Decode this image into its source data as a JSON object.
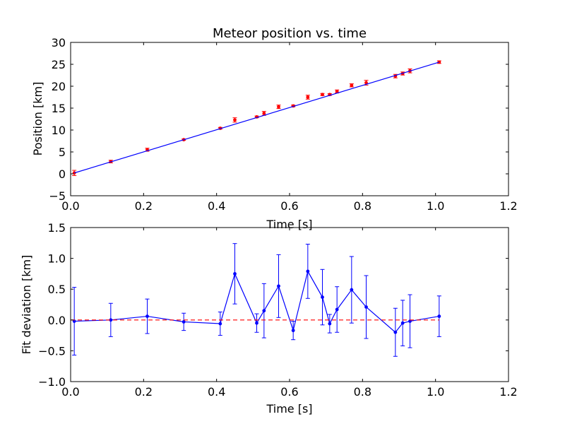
{
  "chart_data": [
    {
      "type": "scatter",
      "title": "Meteor position vs. time",
      "xlabel": "Time [s]",
      "ylabel": "Position [km]",
      "xlim": [
        0.0,
        1.2
      ],
      "ylim": [
        -5,
        30
      ],
      "xticks": [
        0.0,
        0.2,
        0.4,
        0.6,
        0.8,
        1.0,
        1.2
      ],
      "xtick_labels": [
        "0.0",
        "0.2",
        "0.4",
        "0.6",
        "0.8",
        "1.0",
        "1.2"
      ],
      "yticks": [
        -5,
        0,
        5,
        10,
        15,
        20,
        25,
        30
      ],
      "ytick_labels": [
        "−5",
        "0",
        "5",
        "10",
        "15",
        "20",
        "25",
        "30"
      ],
      "grid": false,
      "series": [
        {
          "kind": "errorbar-points",
          "color": "#ff0000",
          "x": [
            0.01,
            0.11,
            0.21,
            0.31,
            0.41,
            0.45,
            0.51,
            0.53,
            0.57,
            0.61,
            0.65,
            0.69,
            0.71,
            0.73,
            0.77,
            0.81,
            0.89,
            0.91,
            0.93,
            1.01
          ],
          "y": [
            0.2,
            2.8,
            5.5,
            7.8,
            10.4,
            12.3,
            13.0,
            13.8,
            15.3,
            15.5,
            17.5,
            18.1,
            18.1,
            18.8,
            20.2,
            20.8,
            22.3,
            22.9,
            23.5,
            25.5
          ],
          "yerr": [
            0.6,
            0.3,
            0.35,
            0.15,
            0.2,
            0.5,
            0.2,
            0.45,
            0.4,
            0.2,
            0.45,
            0.25,
            0.2,
            0.35,
            0.35,
            0.55,
            0.4,
            0.35,
            0.45,
            0.3
          ]
        },
        {
          "kind": "line",
          "color": "#0000ff",
          "x": [
            0.01,
            1.01
          ],
          "y": [
            0.2,
            25.5
          ]
        }
      ]
    },
    {
      "type": "line",
      "title": "",
      "xlabel": "Time [s]",
      "ylabel": "Fit deviation [km]",
      "xlim": [
        0.0,
        1.2
      ],
      "ylim": [
        -1.0,
        1.5
      ],
      "xticks": [
        0.0,
        0.2,
        0.4,
        0.6,
        0.8,
        1.0,
        1.2
      ],
      "xtick_labels": [
        "0.0",
        "0.2",
        "0.4",
        "0.6",
        "0.8",
        "1.0",
        "1.2"
      ],
      "yticks": [
        -1.0,
        -0.5,
        0.0,
        0.5,
        1.0,
        1.5
      ],
      "ytick_labels": [
        "−1.0",
        "−0.5",
        "0.0",
        "0.5",
        "1.0",
        "1.5"
      ],
      "grid": false,
      "series": [
        {
          "kind": "errorbar-line",
          "color": "#0000ff",
          "x": [
            0.01,
            0.11,
            0.21,
            0.31,
            0.41,
            0.45,
            0.51,
            0.53,
            0.57,
            0.61,
            0.65,
            0.69,
            0.71,
            0.73,
            0.77,
            0.81,
            0.89,
            0.91,
            0.93,
            1.01
          ],
          "y": [
            -0.02,
            0.0,
            0.06,
            -0.03,
            -0.06,
            0.75,
            -0.05,
            0.15,
            0.55,
            -0.17,
            0.79,
            0.37,
            -0.06,
            0.17,
            0.49,
            0.21,
            -0.2,
            -0.05,
            -0.02,
            0.06
          ],
          "yerr": [
            0.55,
            0.27,
            0.28,
            0.14,
            0.19,
            0.49,
            0.15,
            0.44,
            0.51,
            0.15,
            0.44,
            0.45,
            0.15,
            0.37,
            0.54,
            0.51,
            0.39,
            0.37,
            0.43,
            0.33
          ]
        },
        {
          "kind": "reference-line",
          "color": "#ff0000",
          "dashed": true,
          "x": [
            0.0,
            1.01
          ],
          "y": [
            0.0,
            0.0
          ]
        }
      ]
    }
  ]
}
